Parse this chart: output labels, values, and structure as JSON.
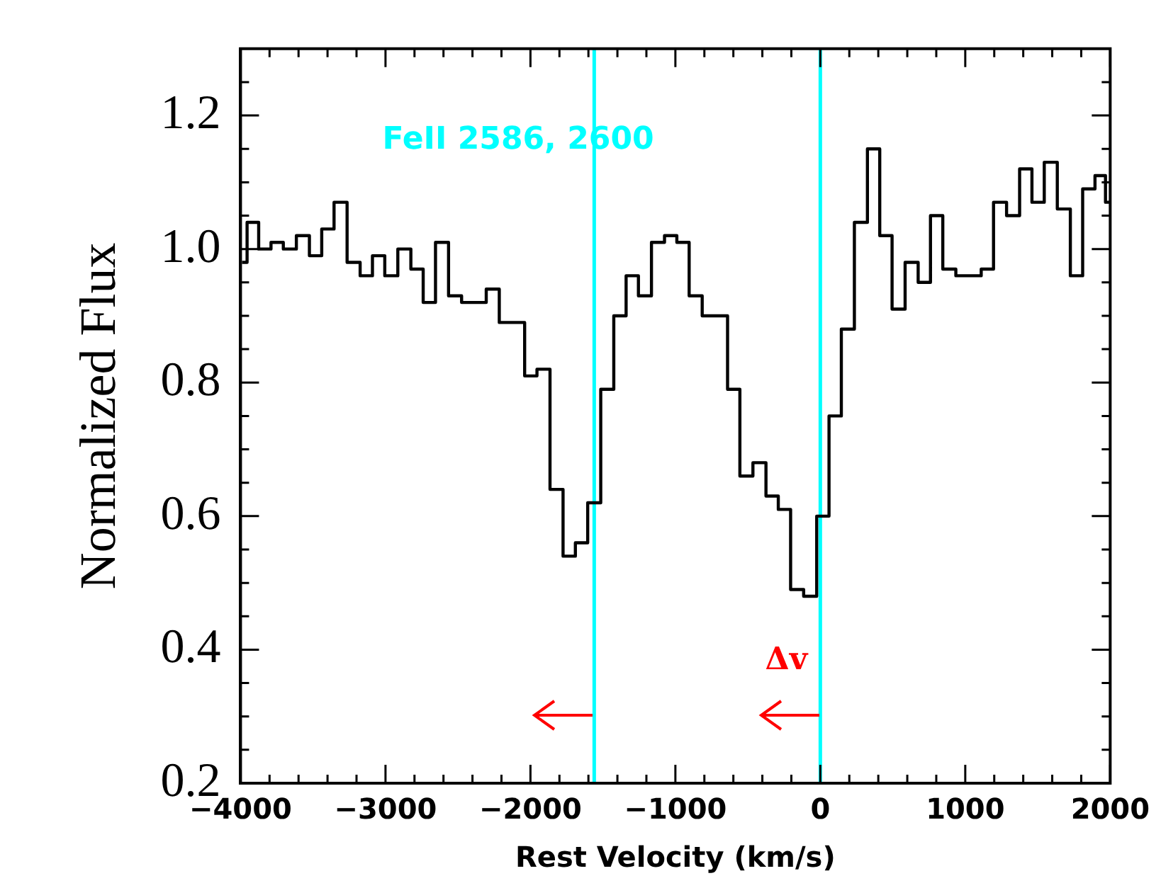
{
  "chart_data": {
    "type": "step",
    "xlabel": "Rest Velocity (km/s)",
    "ylabel": "Normalized Flux",
    "x": [
      -3990,
      -3920,
      -3830,
      -3750,
      -3660,
      -3570,
      -3480,
      -3400,
      -3310,
      -3220,
      -3130,
      -3050,
      -2960,
      -2870,
      -2780,
      -2700,
      -2610,
      -2520,
      -2430,
      -2350,
      -2260,
      -2170,
      -2080,
      -2000,
      -1910,
      -1820,
      -1730,
      -1650,
      -1560,
      -1470,
      -1380,
      -1300,
      -1210,
      -1120,
      -1030,
      -950,
      -860,
      -770,
      -680,
      -600,
      -510,
      -420,
      -330,
      -250,
      -160,
      -70,
      20,
      100,
      190,
      280,
      370,
      450,
      540,
      630,
      720,
      800,
      890,
      980,
      1070,
      1150,
      1240,
      1330,
      1420,
      1500,
      1590,
      1680,
      1770,
      1850,
      1940,
      1995
    ],
    "series": [
      {
        "color": "#000000",
        "values": [
          0.98,
          1.04,
          1.0,
          1.01,
          1.0,
          1.02,
          0.99,
          1.03,
          1.07,
          0.98,
          0.96,
          0.99,
          0.96,
          1.0,
          0.97,
          0.92,
          1.01,
          0.93,
          0.92,
          0.92,
          0.94,
          0.89,
          0.89,
          0.81,
          0.82,
          0.64,
          0.54,
          0.56,
          0.62,
          0.79,
          0.9,
          0.96,
          0.93,
          1.01,
          1.02,
          1.01,
          0.93,
          0.9,
          0.9,
          0.79,
          0.66,
          0.68,
          0.63,
          0.61,
          0.49,
          0.48,
          0.6,
          0.75,
          0.88,
          1.04,
          1.15,
          1.02,
          0.91,
          0.98,
          0.95,
          1.05,
          0.97,
          0.96,
          0.96,
          0.97,
          1.07,
          1.05,
          1.12,
          1.07,
          1.13,
          1.06,
          0.96,
          1.09,
          1.11,
          1.07
        ]
      }
    ],
    "xlim": [
      -4000,
      2000
    ],
    "ylim": [
      0.2,
      1.3
    ],
    "xticks": [
      -4000,
      {
        "value": -3800,
        "label": null
      },
      {
        "value": -3600,
        "label": null
      },
      {
        "value": -3400,
        "label": null
      },
      {
        "value": -3200,
        "label": null
      },
      -3000,
      {
        "value": -2800,
        "label": null
      },
      {
        "value": -2600,
        "label": null
      },
      {
        "value": -2400,
        "label": null
      },
      {
        "value": -2200,
        "label": null
      },
      -2000,
      {
        "value": -1800,
        "label": null
      },
      {
        "value": -1600,
        "label": null
      },
      {
        "value": -1400,
        "label": null
      },
      {
        "value": -1200,
        "label": null
      },
      -1000,
      {
        "value": -800,
        "label": null
      },
      {
        "value": -600,
        "label": null
      },
      {
        "value": -400,
        "label": null
      },
      {
        "value": -200,
        "label": null
      },
      0,
      {
        "value": 200,
        "label": null
      },
      {
        "value": 400,
        "label": null
      },
      {
        "value": 600,
        "label": null
      },
      {
        "value": 800,
        "label": null
      },
      1000,
      {
        "value": 1200,
        "label": null
      },
      {
        "value": 1400,
        "label": null
      },
      {
        "value": 1600,
        "label": null
      },
      {
        "value": 1800,
        "label": null
      },
      2000
    ],
    "yticks": [
      {
        "value": 0.2,
        "label": "0.2"
      },
      {
        "value": 0.25,
        "label": null
      },
      {
        "value": 0.3,
        "label": null
      },
      {
        "value": 0.35,
        "label": null
      },
      {
        "value": 0.4,
        "label": "0.4"
      },
      {
        "value": 0.45,
        "label": null
      },
      {
        "value": 0.5,
        "label": null
      },
      {
        "value": 0.55,
        "label": null
      },
      {
        "value": 0.6,
        "label": "0.6"
      },
      {
        "value": 0.65,
        "label": null
      },
      {
        "value": 0.7,
        "label": null
      },
      {
        "value": 0.75,
        "label": null
      },
      {
        "value": 0.8,
        "label": "0.8"
      },
      {
        "value": 0.85,
        "label": null
      },
      {
        "value": 0.9,
        "label": null
      },
      {
        "value": 0.95,
        "label": null
      },
      {
        "value": 1.0,
        "label": "1.0"
      },
      {
        "value": 1.05,
        "label": null
      },
      {
        "value": 1.1,
        "label": null
      },
      {
        "value": 1.15,
        "label": null
      },
      {
        "value": 1.2,
        "label": "1.2"
      },
      {
        "value": 1.25,
        "label": null
      }
    ],
    "ref_lines": [
      {
        "axis": "x",
        "value": -1560,
        "color": "#00ffff",
        "label": "FeII 2586, 2600"
      },
      {
        "axis": "x",
        "value": 0,
        "color": "#00ffff"
      }
    ],
    "annotations": [
      "Δv"
    ]
  }
}
